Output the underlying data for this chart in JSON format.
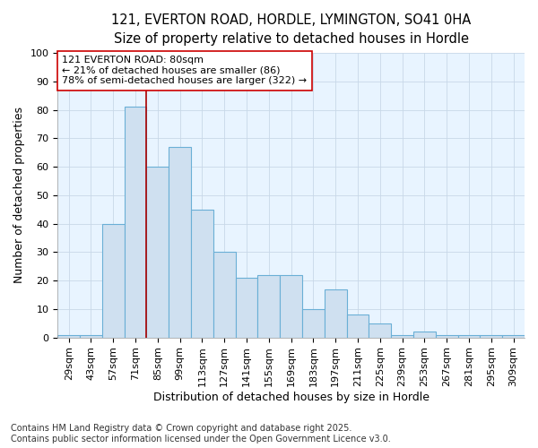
{
  "title_line1": "121, EVERTON ROAD, HORDLE, LYMINGTON, SO41 0HA",
  "title_line2": "Size of property relative to detached houses in Hordle",
  "xlabel": "Distribution of detached houses by size in Hordle",
  "ylabel": "Number of detached properties",
  "categories": [
    "29sqm",
    "43sqm",
    "57sqm",
    "71sqm",
    "85sqm",
    "99sqm",
    "113sqm",
    "127sqm",
    "141sqm",
    "155sqm",
    "169sqm",
    "183sqm",
    "197sqm",
    "211sqm",
    "225sqm",
    "239sqm",
    "253sqm",
    "267sqm",
    "281sqm",
    "295sqm",
    "309sqm"
  ],
  "values": [
    1,
    1,
    40,
    81,
    60,
    67,
    45,
    30,
    21,
    22,
    22,
    10,
    17,
    8,
    5,
    1,
    2,
    1,
    1,
    1,
    1
  ],
  "bar_color": "#cfe0f0",
  "bar_edge_color": "#6aafd6",
  "vline_x": 4,
  "vline_color": "#aa0000",
  "annotation_text": "121 EVERTON ROAD: 80sqm\n← 21% of detached houses are smaller (86)\n78% of semi-detached houses are larger (322) →",
  "annotation_box_color": "#ffffff",
  "annotation_box_edge": "#cc0000",
  "ylim": [
    0,
    100
  ],
  "yticks": [
    0,
    10,
    20,
    30,
    40,
    50,
    60,
    70,
    80,
    90,
    100
  ],
  "grid_color": "#c8d8e8",
  "bg_color": "#ffffff",
  "plot_bg_color": "#e8f4ff",
  "footer_text": "Contains HM Land Registry data © Crown copyright and database right 2025.\nContains public sector information licensed under the Open Government Licence v3.0.",
  "title_fontsize": 10.5,
  "subtitle_fontsize": 9.5,
  "axis_label_fontsize": 9,
  "tick_fontsize": 8,
  "annotation_fontsize": 8,
  "footer_fontsize": 7
}
